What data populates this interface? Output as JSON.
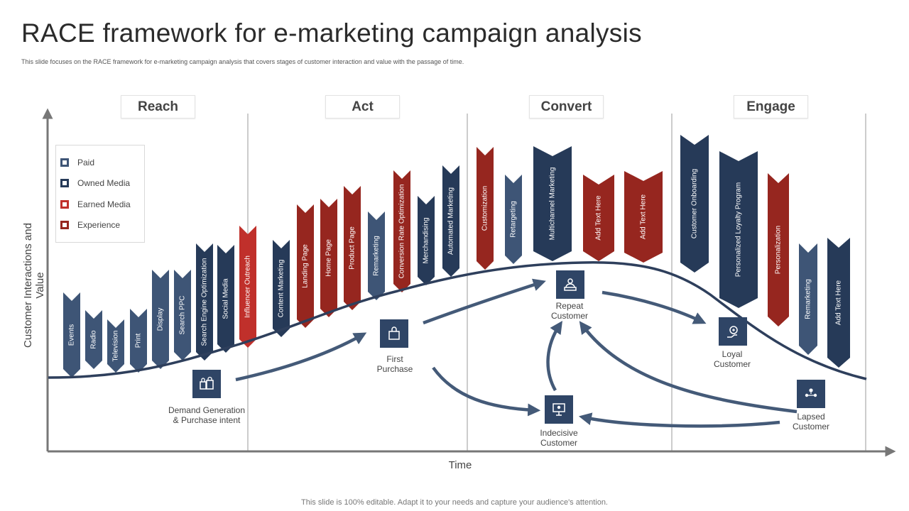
{
  "title": "RACE framework for e-marketing campaign analysis",
  "subtitle": "This slide focuses on the RACE  framework for e-marketing campaign analysis that covers stages of customer interaction and value with the passage of time.",
  "footer": "This slide is 100% editable. Adapt it to your needs and capture your audience's attention.",
  "stages": [
    "Reach",
    "Act",
    "Convert",
    "Engage"
  ],
  "axes": {
    "y_label": "Customer Interactions  and Value",
    "x_label": "Time"
  },
  "legend": [
    {
      "label": "Paid",
      "color": "#3e5576"
    },
    {
      "label": "Owned Media",
      "color": "#263a58"
    },
    {
      "label": "Earned Media",
      "color": "#c0302b"
    },
    {
      "label": "Experience",
      "color": "#96261f"
    }
  ],
  "colors": {
    "paid": "#3e5576",
    "owned": "#263a58",
    "earned": "#c0302b",
    "experience": "#96261f",
    "curve": "#2e3f5c",
    "arrow": "#445a78"
  },
  "tactics": [
    {
      "label": "Events",
      "type": "paid"
    },
    {
      "label": "Radio",
      "type": "paid"
    },
    {
      "label": "Television",
      "type": "paid"
    },
    {
      "label": "Print",
      "type": "paid"
    },
    {
      "label": "Display",
      "type": "paid"
    },
    {
      "label": "Search PPC",
      "type": "paid"
    },
    {
      "label": "Search Engine Optimization",
      "type": "owned"
    },
    {
      "label": "Social Media",
      "type": "owned"
    },
    {
      "label": "Influencer Outreach",
      "type": "earned"
    },
    {
      "label": "Content Marketing",
      "type": "owned"
    },
    {
      "label": "Landing Page",
      "type": "experience"
    },
    {
      "label": "Home Page",
      "type": "experience"
    },
    {
      "label": "Product Page",
      "type": "experience"
    },
    {
      "label": "Remarketing",
      "type": "paid"
    },
    {
      "label": "Conversion Rate Optimization",
      "type": "experience"
    },
    {
      "label": "Merchandising",
      "type": "owned"
    },
    {
      "label": "Automated Marketing",
      "type": "owned"
    },
    {
      "label": "Customization",
      "type": "experience"
    },
    {
      "label": "Retargeting",
      "type": "paid"
    },
    {
      "label": "Multichannel Marketing",
      "type": "owned"
    },
    {
      "label": "Add Text Here",
      "type": "experience"
    },
    {
      "label": "Add Text Here",
      "type": "experience"
    },
    {
      "label": "Customer Onboarding",
      "type": "owned"
    },
    {
      "label": "Personalized Loyalty Program",
      "type": "owned"
    },
    {
      "label": "Personalization",
      "type": "experience"
    },
    {
      "label": "Remarketing",
      "type": "paid"
    },
    {
      "label": "Add Text Here",
      "type": "owned"
    }
  ],
  "nodes": [
    {
      "label": "Demand Generation\n& Purchase intent",
      "icon": "shopping-bags-icon"
    },
    {
      "label": "First\nPurchase",
      "icon": "shopping-bag-icon"
    },
    {
      "label": "Repeat\nCustomer",
      "icon": "customer-desk-icon"
    },
    {
      "label": "Loyal\nCustomer",
      "icon": "loyal-badge-icon"
    },
    {
      "label": "Indecisive\nCustomer",
      "icon": "indecisive-screen-icon"
    },
    {
      "label": "Lapsed\nCustomer",
      "icon": "user-group-icon"
    }
  ]
}
